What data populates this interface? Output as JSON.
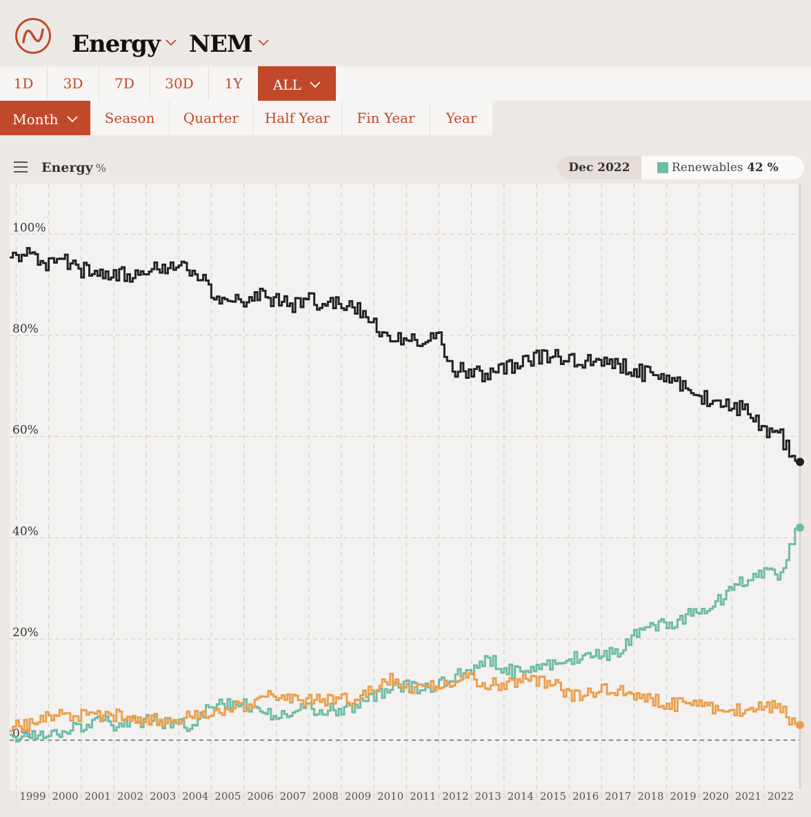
{
  "header": {
    "metric_selector": "Energy",
    "region_selector": "NEM"
  },
  "range_buttons": [
    "1D",
    "3D",
    "7D",
    "30D",
    "1Y",
    "ALL"
  ],
  "active_range": "ALL",
  "period_buttons": [
    "Month",
    "Season",
    "Quarter",
    "Half Year",
    "Fin Year",
    "Year"
  ],
  "active_period": "Month",
  "chart_header": {
    "title": "Energy",
    "unit": "%",
    "hover_date": "Dec 2022",
    "hover_series": "Renewables",
    "hover_value": "42 %"
  },
  "colors": {
    "accent": "#c0492b",
    "fossil": "#222222",
    "renewables": "#6fbba6",
    "other": "#e9a04e"
  },
  "chart_data": {
    "type": "line",
    "step": true,
    "x_ticks": [
      "1999",
      "2000",
      "2001",
      "2002",
      "2003",
      "2004",
      "2005",
      "2006",
      "2007",
      "2008",
      "2009",
      "2010",
      "2011",
      "2012",
      "2013",
      "2014",
      "2015",
      "2016",
      "2017",
      "2018",
      "2019",
      "2020",
      "2021",
      "2022"
    ],
    "y_ticks": [
      "0%",
      "20%",
      "40%",
      "60%",
      "80%",
      "100%"
    ],
    "x_range": [
      1998.8,
      2023.1
    ],
    "y_range": [
      -10,
      110
    ],
    "grid": true,
    "series": [
      {
        "color_key": "fossil",
        "x": [
          1998.8,
          1999.0,
          1999.5,
          2000.0,
          2000.5,
          2001.0,
          2001.5,
          2002.0,
          2002.5,
          2003.0,
          2003.5,
          2004.0,
          2004.5,
          2005.0,
          2005.5,
          2006.0,
          2006.5,
          2007.0,
          2007.5,
          2008.0,
          2008.5,
          2009.0,
          2009.5,
          2010.0,
          2010.5,
          2011.0,
          2011.5,
          2012.0,
          2012.5,
          2013.0,
          2013.5,
          2014.0,
          2014.5,
          2015.0,
          2015.5,
          2016.0,
          2016.5,
          2017.0,
          2017.5,
          2018.0,
          2018.5,
          2019.0,
          2019.5,
          2020.0,
          2020.5,
          2021.0,
          2021.5,
          2022.0,
          2022.5,
          2022.95
        ],
        "y": [
          95,
          96,
          96,
          94,
          95,
          93,
          92,
          92,
          92,
          93,
          93,
          94,
          92,
          89,
          86,
          87,
          88,
          87,
          86,
          87,
          86,
          86,
          85,
          82,
          78,
          80,
          79,
          79,
          73,
          73,
          72,
          74,
          74,
          76,
          76,
          75,
          75,
          74,
          74,
          73,
          72,
          71,
          70,
          68,
          67,
          66,
          65,
          61,
          60,
          55
        ]
      },
      {
        "color_key": "renewables",
        "x": [
          1998.8,
          1999.0,
          1999.5,
          2000.0,
          2000.5,
          2001.0,
          2001.5,
          2002.0,
          2002.5,
          2003.0,
          2003.5,
          2004.0,
          2004.5,
          2005.0,
          2005.5,
          2006.0,
          2006.5,
          2007.0,
          2007.5,
          2008.0,
          2008.5,
          2009.0,
          2009.5,
          2010.0,
          2010.5,
          2011.0,
          2011.5,
          2012.0,
          2012.5,
          2013.0,
          2013.5,
          2014.0,
          2014.5,
          2015.0,
          2015.5,
          2016.0,
          2016.5,
          2017.0,
          2017.5,
          2018.0,
          2018.5,
          2019.0,
          2019.5,
          2020.0,
          2020.5,
          2021.0,
          2021.5,
          2022.0,
          2022.5,
          2022.95
        ],
        "y": [
          0.5,
          0.5,
          1,
          1,
          1.5,
          3,
          4,
          3,
          3.5,
          4,
          3.5,
          3,
          3,
          7,
          7,
          7,
          5,
          5,
          6,
          6,
          6,
          6,
          7,
          9,
          10,
          11,
          10,
          11,
          13,
          13,
          16,
          14,
          13,
          14,
          15,
          16,
          17,
          17,
          17,
          21,
          22,
          23,
          24,
          26,
          27,
          30,
          32,
          33,
          32,
          42
        ]
      },
      {
        "color_key": "other",
        "x": [
          1998.8,
          1999.0,
          1999.5,
          2000.0,
          2000.5,
          2001.0,
          2001.5,
          2002.0,
          2002.5,
          2003.0,
          2003.5,
          2004.0,
          2004.5,
          2005.0,
          2005.5,
          2006.0,
          2006.5,
          2007.0,
          2007.5,
          2008.0,
          2008.5,
          2009.0,
          2009.5,
          2010.0,
          2010.5,
          2011.0,
          2011.5,
          2012.0,
          2012.5,
          2013.0,
          2013.5,
          2014.0,
          2014.5,
          2015.0,
          2015.5,
          2016.0,
          2016.5,
          2017.0,
          2017.5,
          2018.0,
          2018.5,
          2019.0,
          2019.5,
          2020.0,
          2020.5,
          2021.0,
          2021.5,
          2022.0,
          2022.5,
          2022.95
        ],
        "y": [
          3,
          3,
          3,
          5,
          5,
          5,
          5,
          5,
          4,
          4,
          4,
          4,
          5,
          5,
          6,
          7,
          8,
          9,
          8,
          8,
          8,
          8,
          8,
          10,
          12,
          10,
          10,
          11,
          12,
          12,
          11,
          11,
          12,
          12,
          11,
          9,
          9,
          10,
          10,
          8,
          8,
          7,
          7,
          7,
          6,
          6,
          6,
          7,
          6,
          3
        ]
      }
    ]
  }
}
